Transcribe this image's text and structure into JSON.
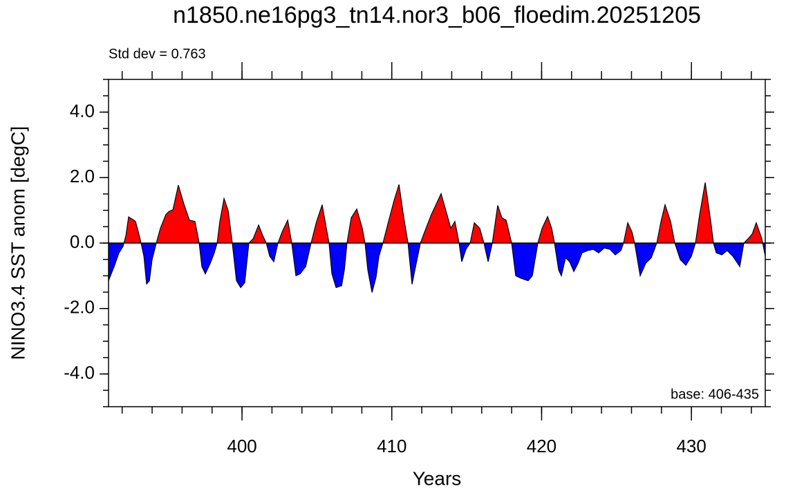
{
  "chart_data": {
    "type": "area",
    "title": "n1850.ne16pg3_tn14.nor3_b06_floedim.20251205",
    "subtitle": "Std dev = 0.763",
    "annotation": "base: 406-435",
    "xlabel": "Years",
    "ylabel": "NINO3.4 SST anom [degC]",
    "x": [
      391.09,
      391.46,
      391.79,
      392.06,
      392.25,
      392.43,
      392.71,
      392.89,
      393.08,
      393.26,
      393.45,
      393.63,
      393.82,
      394.0,
      394.28,
      394.55,
      394.92,
      395.11,
      395.39,
      395.75,
      396.12,
      396.49,
      396.86,
      397.14,
      397.32,
      397.55,
      397.88,
      398.15,
      398.34,
      398.52,
      398.8,
      399.08,
      399.35,
      399.63,
      399.91,
      400.18,
      400.46,
      400.74,
      401.11,
      401.38,
      401.62,
      401.85,
      402.12,
      402.4,
      402.68,
      403.05,
      403.23,
      403.32,
      403.6,
      403.88,
      404.25,
      404.61,
      404.98,
      405.35,
      405.63,
      405.81,
      406.0,
      406.28,
      406.65,
      406.83,
      407.01,
      407.29,
      407.66,
      408.03,
      408.21,
      408.4,
      408.68,
      408.95,
      409.14,
      409.41,
      409.78,
      410.15,
      410.48,
      410.8,
      411.08,
      411.35,
      411.63,
      411.91,
      412.28,
      412.64,
      413.29,
      413.66,
      413.94,
      414.21,
      414.49,
      414.67,
      414.95,
      415.23,
      415.51,
      415.87,
      416.15,
      416.43,
      416.71,
      417.07,
      417.35,
      417.63,
      418.0,
      418.27,
      418.64,
      419.1,
      419.38,
      419.75,
      420.03,
      420.4,
      420.67,
      420.86,
      421.14,
      421.32,
      421.6,
      421.87,
      422.15,
      422.43,
      422.7,
      423.07,
      423.44,
      423.81,
      424.18,
      424.55,
      424.92,
      425.29,
      425.47,
      425.75,
      426.03,
      426.21,
      426.58,
      426.95,
      427.32,
      427.69,
      427.97,
      428.24,
      428.61,
      428.89,
      429.26,
      429.63,
      430.0,
      430.27,
      430.55,
      430.92,
      431.29,
      431.47,
      431.66,
      432.03,
      432.39,
      432.76,
      433.23,
      433.5,
      433.78,
      434.06,
      434.33,
      434.7,
      434.93
    ],
    "values": [
      -1.15,
      -0.72,
      -0.3,
      -0.1,
      0.23,
      0.8,
      0.72,
      0.66,
      0.34,
      0,
      -0.4,
      -1.25,
      -1.15,
      -0.5,
      0,
      0.45,
      0.87,
      0.96,
      1.02,
      1.77,
      1.19,
      0.7,
      0.66,
      0,
      -0.72,
      -0.94,
      -0.62,
      -0.3,
      0,
      0.66,
      1.36,
      0.98,
      0,
      -1.15,
      -1.36,
      -1.21,
      0,
      0.13,
      0.55,
      0.23,
      0,
      -0.4,
      -0.57,
      0,
      0.34,
      0.7,
      0.23,
      0,
      -1.0,
      -0.94,
      -0.72,
      0,
      0.66,
      1.17,
      0.45,
      0,
      -0.94,
      -1.36,
      -1.3,
      -0.83,
      0,
      0.77,
      1.04,
      0.45,
      0,
      -0.83,
      -1.51,
      -1.04,
      -0.4,
      0,
      0.66,
      1.3,
      1.79,
      0.77,
      0,
      -1.26,
      -0.62,
      0,
      0.45,
      0.87,
      1.51,
      0.91,
      0.45,
      0.66,
      0,
      -0.57,
      -0.19,
      0,
      0.62,
      0.45,
      0,
      -0.57,
      0,
      1.15,
      0.77,
      0.7,
      0,
      -1.0,
      -1.08,
      -1.15,
      -1.0,
      0,
      0.45,
      0.81,
      0.45,
      0,
      -0.83,
      -1.0,
      -0.45,
      -0.57,
      -0.87,
      -0.62,
      -0.3,
      -0.23,
      -0.19,
      -0.3,
      -0.15,
      -0.19,
      -0.36,
      -0.23,
      0,
      0.62,
      0.34,
      0,
      -1.0,
      -0.62,
      -0.45,
      0,
      0.66,
      1.17,
      0.66,
      0,
      -0.51,
      -0.68,
      -0.4,
      0,
      0.87,
      1.85,
      0.66,
      0,
      -0.3,
      -0.36,
      -0.23,
      -0.4,
      -0.72,
      0,
      0.13,
      0.28,
      0.62,
      0.13,
      -0.4
    ],
    "colors": {
      "above": "#ff0000",
      "below": "#0000ff"
    },
    "xlim": [
      391.09,
      434.93
    ],
    "ylim": [
      -5,
      5
    ],
    "xticks": [
      400,
      410,
      420,
      430
    ],
    "yticks": [
      {
        "value": -4,
        "label": "-4.0"
      },
      {
        "value": -2,
        "label": "-2.0"
      },
      {
        "value": 0,
        "label": "0.0"
      },
      {
        "value": 2,
        "label": "2.0"
      },
      {
        "value": 4,
        "label": "4.0"
      }
    ]
  }
}
